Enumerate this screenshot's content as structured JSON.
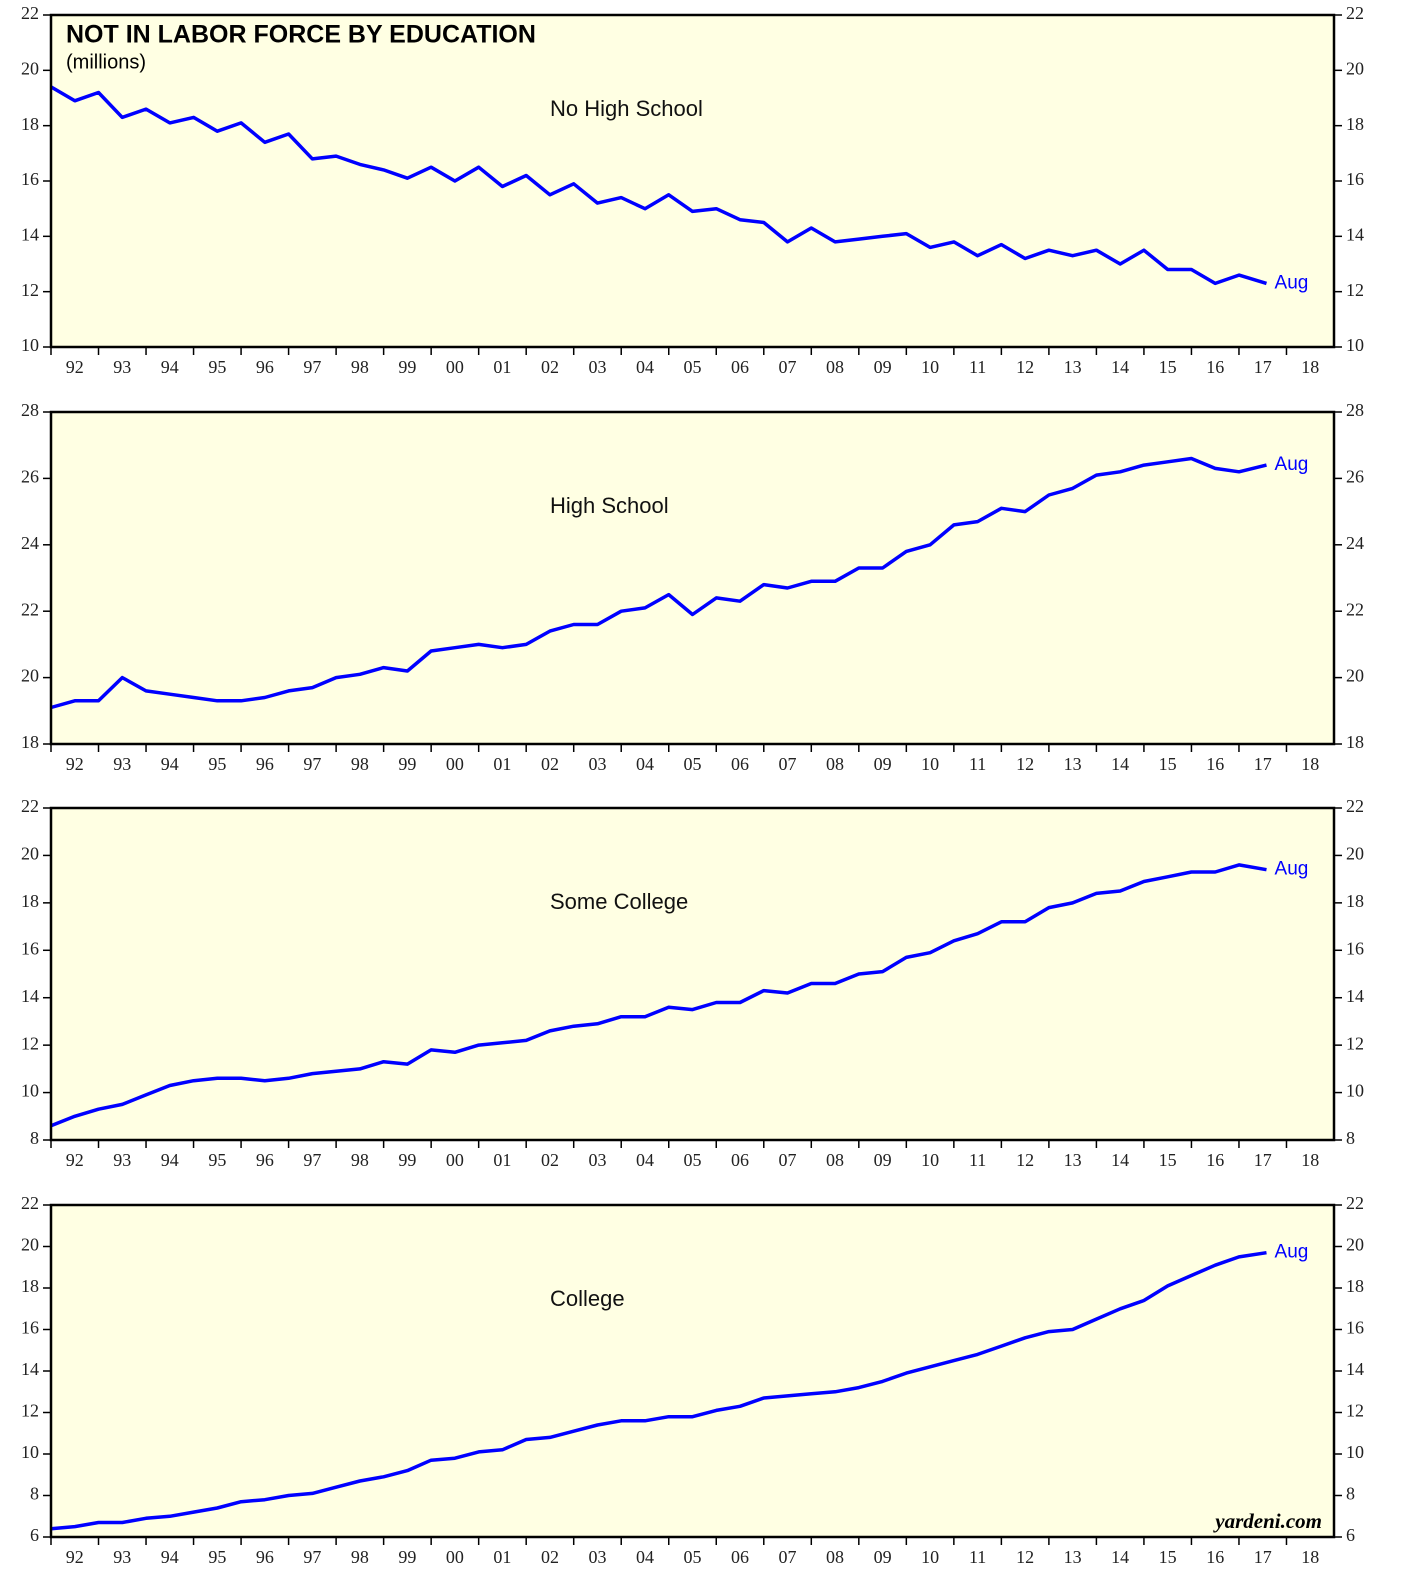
{
  "title": "NOT IN LABOR FORCE BY EDUCATION",
  "subtitle": "(millions)",
  "source": "yardeni.com",
  "chart_data": [
    {
      "type": "line",
      "title": "No High School",
      "annotation": "Aug",
      "x": [
        1992,
        1992.5,
        1993,
        1993.5,
        1994,
        1994.5,
        1995,
        1995.5,
        1996,
        1996.5,
        1997,
        1997.5,
        1998,
        1998.5,
        1999,
        1999.5,
        2000,
        2000.5,
        2001,
        2001.5,
        2002,
        2002.5,
        2003,
        2003.5,
        2004,
        2004.5,
        2005,
        2005.5,
        2006,
        2006.5,
        2007,
        2007.5,
        2008,
        2008.5,
        2009,
        2009.5,
        2010,
        2010.5,
        2011,
        2011.5,
        2012,
        2012.5,
        2013,
        2013.5,
        2014,
        2014.5,
        2015,
        2015.5,
        2016,
        2016.5,
        2017,
        2017.58
      ],
      "series": [
        {
          "color": "#0000ff",
          "values": [
            19.4,
            18.9,
            19.2,
            18.3,
            18.6,
            18.1,
            18.3,
            17.8,
            18.1,
            17.4,
            17.7,
            16.8,
            16.9,
            16.6,
            16.4,
            16.1,
            16.5,
            16.0,
            16.5,
            15.8,
            16.2,
            15.5,
            15.9,
            15.2,
            15.4,
            15.0,
            15.5,
            14.9,
            15.0,
            14.6,
            14.5,
            13.8,
            14.3,
            13.8,
            13.9,
            14.0,
            14.1,
            13.6,
            13.8,
            13.3,
            13.7,
            13.2,
            13.5,
            13.3,
            13.5,
            13.0,
            13.5,
            12.8,
            12.8,
            12.3,
            12.6,
            12.3
          ]
        }
      ],
      "xlim": [
        1992,
        2019
      ],
      "xticks": [
        {
          "value": 1992,
          "label": "92"
        },
        {
          "value": 1993,
          "label": "93"
        },
        {
          "value": 1994,
          "label": "94"
        },
        {
          "value": 1995,
          "label": "95"
        },
        {
          "value": 1996,
          "label": "96"
        },
        {
          "value": 1997,
          "label": "97"
        },
        {
          "value": 1998,
          "label": "98"
        },
        {
          "value": 1999,
          "label": "99"
        },
        {
          "value": 2000,
          "label": "00"
        },
        {
          "value": 2001,
          "label": "01"
        },
        {
          "value": 2002,
          "label": "02"
        },
        {
          "value": 2003,
          "label": "03"
        },
        {
          "value": 2004,
          "label": "04"
        },
        {
          "value": 2005,
          "label": "05"
        },
        {
          "value": 2006,
          "label": "06"
        },
        {
          "value": 2007,
          "label": "07"
        },
        {
          "value": 2008,
          "label": "08"
        },
        {
          "value": 2009,
          "label": "09"
        },
        {
          "value": 2010,
          "label": "10"
        },
        {
          "value": 2011,
          "label": "11"
        },
        {
          "value": 2012,
          "label": "12"
        },
        {
          "value": 2013,
          "label": "13"
        },
        {
          "value": 2014,
          "label": "14"
        },
        {
          "value": 2015,
          "label": "15"
        },
        {
          "value": 2016,
          "label": "16"
        },
        {
          "value": 2017,
          "label": "17"
        },
        {
          "value": 2018,
          "label": "18"
        }
      ],
      "ylim": [
        10,
        22
      ],
      "yticks": [
        10,
        12,
        14,
        16,
        18,
        20,
        22
      ]
    },
    {
      "type": "line",
      "title": "High School",
      "annotation": "Aug",
      "x": [
        1992,
        1992.5,
        1993,
        1993.5,
        1994,
        1994.5,
        1995,
        1995.5,
        1996,
        1996.5,
        1997,
        1997.5,
        1998,
        1998.5,
        1999,
        1999.5,
        2000,
        2000.5,
        2001,
        2001.5,
        2002,
        2002.5,
        2003,
        2003.5,
        2004,
        2004.5,
        2005,
        2005.5,
        2006,
        2006.5,
        2007,
        2007.5,
        2008,
        2008.5,
        2009,
        2009.5,
        2010,
        2010.5,
        2011,
        2011.5,
        2012,
        2012.5,
        2013,
        2013.5,
        2014,
        2014.5,
        2015,
        2015.5,
        2016,
        2016.5,
        2017,
        2017.58
      ],
      "series": [
        {
          "color": "#0000ff",
          "values": [
            19.1,
            19.3,
            19.3,
            20.0,
            19.6,
            19.5,
            19.4,
            19.3,
            19.3,
            19.4,
            19.6,
            19.7,
            20.0,
            20.1,
            20.3,
            20.2,
            20.8,
            20.9,
            21.0,
            20.9,
            21.0,
            21.4,
            21.6,
            21.6,
            22.0,
            22.1,
            22.5,
            21.9,
            22.4,
            22.3,
            22.8,
            22.7,
            22.9,
            22.9,
            23.3,
            23.3,
            23.8,
            24.0,
            24.6,
            24.7,
            25.1,
            25.0,
            25.5,
            25.7,
            26.1,
            26.2,
            26.4,
            26.5,
            26.6,
            26.3,
            26.2,
            26.4
          ]
        }
      ],
      "xlim": [
        1992,
        2019
      ],
      "xticks": [
        {
          "value": 1992,
          "label": "92"
        },
        {
          "value": 1993,
          "label": "93"
        },
        {
          "value": 1994,
          "label": "94"
        },
        {
          "value": 1995,
          "label": "95"
        },
        {
          "value": 1996,
          "label": "96"
        },
        {
          "value": 1997,
          "label": "97"
        },
        {
          "value": 1998,
          "label": "98"
        },
        {
          "value": 1999,
          "label": "99"
        },
        {
          "value": 2000,
          "label": "00"
        },
        {
          "value": 2001,
          "label": "01"
        },
        {
          "value": 2002,
          "label": "02"
        },
        {
          "value": 2003,
          "label": "03"
        },
        {
          "value": 2004,
          "label": "04"
        },
        {
          "value": 2005,
          "label": "05"
        },
        {
          "value": 2006,
          "label": "06"
        },
        {
          "value": 2007,
          "label": "07"
        },
        {
          "value": 2008,
          "label": "08"
        },
        {
          "value": 2009,
          "label": "09"
        },
        {
          "value": 2010,
          "label": "10"
        },
        {
          "value": 2011,
          "label": "11"
        },
        {
          "value": 2012,
          "label": "12"
        },
        {
          "value": 2013,
          "label": "13"
        },
        {
          "value": 2014,
          "label": "14"
        },
        {
          "value": 2015,
          "label": "15"
        },
        {
          "value": 2016,
          "label": "16"
        },
        {
          "value": 2017,
          "label": "17"
        },
        {
          "value": 2018,
          "label": "18"
        }
      ],
      "ylim": [
        18,
        28
      ],
      "yticks": [
        18,
        20,
        22,
        24,
        26,
        28
      ]
    },
    {
      "type": "line",
      "title": "Some College",
      "annotation": "Aug",
      "x": [
        1992,
        1992.5,
        1993,
        1993.5,
        1994,
        1994.5,
        1995,
        1995.5,
        1996,
        1996.5,
        1997,
        1997.5,
        1998,
        1998.5,
        1999,
        1999.5,
        2000,
        2000.5,
        2001,
        2001.5,
        2002,
        2002.5,
        2003,
        2003.5,
        2004,
        2004.5,
        2005,
        2005.5,
        2006,
        2006.5,
        2007,
        2007.5,
        2008,
        2008.5,
        2009,
        2009.5,
        2010,
        2010.5,
        2011,
        2011.5,
        2012,
        2012.5,
        2013,
        2013.5,
        2014,
        2014.5,
        2015,
        2015.5,
        2016,
        2016.5,
        2017,
        2017.58
      ],
      "series": [
        {
          "color": "#0000ff",
          "values": [
            8.6,
            9.0,
            9.3,
            9.5,
            9.9,
            10.3,
            10.5,
            10.6,
            10.6,
            10.5,
            10.6,
            10.8,
            10.9,
            11.0,
            11.3,
            11.2,
            11.8,
            11.7,
            12.0,
            12.1,
            12.2,
            12.6,
            12.8,
            12.9,
            13.2,
            13.2,
            13.6,
            13.5,
            13.8,
            13.8,
            14.3,
            14.2,
            14.6,
            14.6,
            15.0,
            15.1,
            15.7,
            15.9,
            16.4,
            16.7,
            17.2,
            17.2,
            17.8,
            18.0,
            18.4,
            18.5,
            18.9,
            19.1,
            19.3,
            19.3,
            19.6,
            19.4
          ]
        }
      ],
      "xlim": [
        1992,
        2019
      ],
      "xticks": [
        {
          "value": 1992,
          "label": "92"
        },
        {
          "value": 1993,
          "label": "93"
        },
        {
          "value": 1994,
          "label": "94"
        },
        {
          "value": 1995,
          "label": "95"
        },
        {
          "value": 1996,
          "label": "96"
        },
        {
          "value": 1997,
          "label": "97"
        },
        {
          "value": 1998,
          "label": "98"
        },
        {
          "value": 1999,
          "label": "99"
        },
        {
          "value": 2000,
          "label": "00"
        },
        {
          "value": 2001,
          "label": "01"
        },
        {
          "value": 2002,
          "label": "02"
        },
        {
          "value": 2003,
          "label": "03"
        },
        {
          "value": 2004,
          "label": "04"
        },
        {
          "value": 2005,
          "label": "05"
        },
        {
          "value": 2006,
          "label": "06"
        },
        {
          "value": 2007,
          "label": "07"
        },
        {
          "value": 2008,
          "label": "08"
        },
        {
          "value": 2009,
          "label": "09"
        },
        {
          "value": 2010,
          "label": "10"
        },
        {
          "value": 2011,
          "label": "11"
        },
        {
          "value": 2012,
          "label": "12"
        },
        {
          "value": 2013,
          "label": "13"
        },
        {
          "value": 2014,
          "label": "14"
        },
        {
          "value": 2015,
          "label": "15"
        },
        {
          "value": 2016,
          "label": "16"
        },
        {
          "value": 2017,
          "label": "17"
        },
        {
          "value": 2018,
          "label": "18"
        }
      ],
      "ylim": [
        8,
        22
      ],
      "yticks": [
        8,
        10,
        12,
        14,
        16,
        18,
        20,
        22
      ]
    },
    {
      "type": "line",
      "title": "College",
      "annotation": "Aug",
      "x": [
        1992,
        1992.5,
        1993,
        1993.5,
        1994,
        1994.5,
        1995,
        1995.5,
        1996,
        1996.5,
        1997,
        1997.5,
        1998,
        1998.5,
        1999,
        1999.5,
        2000,
        2000.5,
        2001,
        2001.5,
        2002,
        2002.5,
        2003,
        2003.5,
        2004,
        2004.5,
        2005,
        2005.5,
        2006,
        2006.5,
        2007,
        2007.5,
        2008,
        2008.5,
        2009,
        2009.5,
        2010,
        2010.5,
        2011,
        2011.5,
        2012,
        2012.5,
        2013,
        2013.5,
        2014,
        2014.5,
        2015,
        2015.5,
        2016,
        2016.5,
        2017,
        2017.58
      ],
      "series": [
        {
          "color": "#0000ff",
          "values": [
            6.4,
            6.5,
            6.7,
            6.7,
            6.9,
            7.0,
            7.2,
            7.4,
            7.7,
            7.8,
            8.0,
            8.1,
            8.4,
            8.7,
            8.9,
            9.2,
            9.7,
            9.8,
            10.1,
            10.2,
            10.7,
            10.8,
            11.1,
            11.4,
            11.6,
            11.6,
            11.8,
            11.8,
            12.1,
            12.3,
            12.7,
            12.8,
            12.9,
            13.0,
            13.2,
            13.5,
            13.9,
            14.2,
            14.5,
            14.8,
            15.2,
            15.6,
            15.9,
            16.0,
            16.5,
            17.0,
            17.4,
            18.1,
            18.6,
            19.1,
            19.5,
            19.7
          ]
        }
      ],
      "xlim": [
        1992,
        2019
      ],
      "xticks": [
        {
          "value": 1992,
          "label": "92"
        },
        {
          "value": 1993,
          "label": "93"
        },
        {
          "value": 1994,
          "label": "94"
        },
        {
          "value": 1995,
          "label": "95"
        },
        {
          "value": 1996,
          "label": "96"
        },
        {
          "value": 1997,
          "label": "97"
        },
        {
          "value": 1998,
          "label": "98"
        },
        {
          "value": 1999,
          "label": "99"
        },
        {
          "value": 2000,
          "label": "00"
        },
        {
          "value": 2001,
          "label": "01"
        },
        {
          "value": 2002,
          "label": "02"
        },
        {
          "value": 2003,
          "label": "03"
        },
        {
          "value": 2004,
          "label": "04"
        },
        {
          "value": 2005,
          "label": "05"
        },
        {
          "value": 2006,
          "label": "06"
        },
        {
          "value": 2007,
          "label": "07"
        },
        {
          "value": 2008,
          "label": "08"
        },
        {
          "value": 2009,
          "label": "09"
        },
        {
          "value": 2010,
          "label": "10"
        },
        {
          "value": 2011,
          "label": "11"
        },
        {
          "value": 2012,
          "label": "12"
        },
        {
          "value": 2013,
          "label": "13"
        },
        {
          "value": 2014,
          "label": "14"
        },
        {
          "value": 2015,
          "label": "15"
        },
        {
          "value": 2016,
          "label": "16"
        },
        {
          "value": 2017,
          "label": "17"
        },
        {
          "value": 2018,
          "label": "18"
        }
      ],
      "ylim": [
        6,
        22
      ],
      "yticks": [
        6,
        8,
        10,
        12,
        14,
        16,
        18,
        20,
        22
      ]
    }
  ]
}
